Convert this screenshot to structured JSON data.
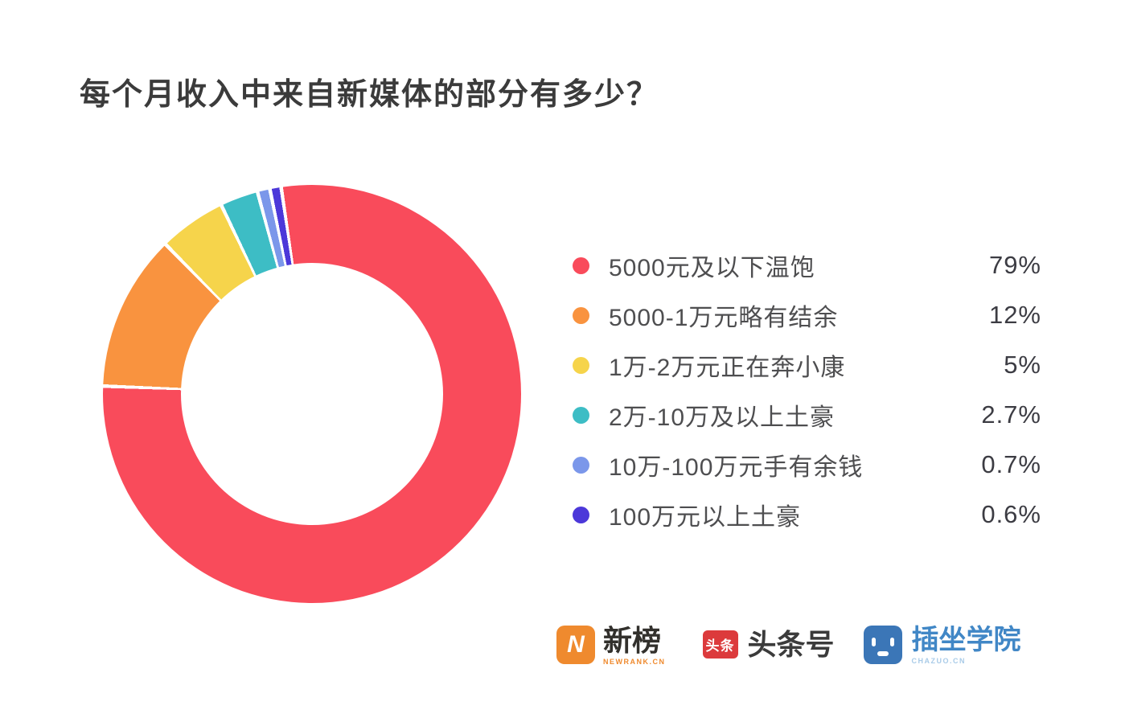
{
  "page": {
    "background": "#ffffff"
  },
  "title": "每个月收入中来自新媒体的部分有多少？",
  "chart_data": {
    "type": "pie",
    "variant": "donut",
    "title": "每个月收入中来自新媒体的部分有多少？",
    "start_angle_deg": -8,
    "direction": "clockwise",
    "legend_position": "right",
    "hole_ratio": 0.63,
    "slice_gap_color": "#ffffff",
    "series": [
      {
        "label": "5000元及以下温饱",
        "value": 79,
        "display": "79%",
        "color": "#F94B5B"
      },
      {
        "label": "5000-1万元略有结余",
        "value": 12,
        "display": "12%",
        "color": "#F9933F"
      },
      {
        "label": "1万-2万元正在奔小康",
        "value": 5,
        "display": "5%",
        "color": "#F6D44B"
      },
      {
        "label": "2万-10万及以上土豪",
        "value": 2.7,
        "display": "2.7%",
        "color": "#3DBDC5"
      },
      {
        "label": "10万-100万元手有余钱",
        "value": 0.7,
        "display": "0.7%",
        "color": "#7B97EA"
      },
      {
        "label": "100万元以上土豪",
        "value": 0.6,
        "display": "0.6%",
        "color": "#4C38D9"
      }
    ]
  },
  "footer_logos": {
    "newrank": {
      "icon_letter": "N",
      "name": "新榜",
      "sub": "NEWRANK.CN",
      "icon_color": "#EF8A2E",
      "text_color": "#32302C",
      "sub_color": "#EF8A2E"
    },
    "toutiao": {
      "icon_text": "头条",
      "name": "头条号",
      "icon_color": "#DC3A3C",
      "text_color": "#3B3B3B"
    },
    "chazuo": {
      "name": "插坐学院",
      "sub": "CHAZUO.CN",
      "icon_color": "#3B76B7",
      "text_color": "#4187C6",
      "sub_color": "#A9CBE8"
    }
  }
}
